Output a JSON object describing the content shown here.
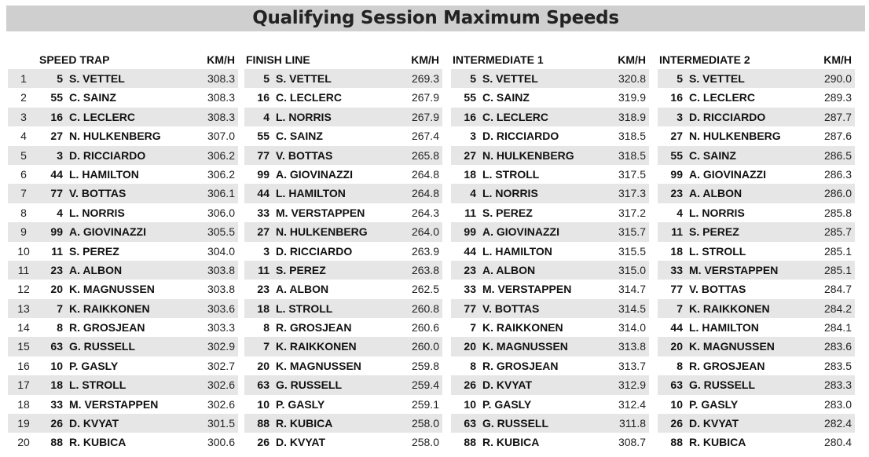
{
  "title": "Qualifying Session Maximum Speeds",
  "positions": [
    "1",
    "2",
    "3",
    "4",
    "5",
    "6",
    "7",
    "8",
    "9",
    "10",
    "11",
    "12",
    "13",
    "14",
    "15",
    "16",
    "17",
    "18",
    "19",
    "20"
  ],
  "sections": [
    {
      "title": "SPEED TRAP",
      "unit": "KM/H",
      "rows": [
        {
          "num": "5",
          "driver": "S. VETTEL",
          "speed": "308.3"
        },
        {
          "num": "55",
          "driver": "C. SAINZ",
          "speed": "308.3"
        },
        {
          "num": "16",
          "driver": "C. LECLERC",
          "speed": "308.3"
        },
        {
          "num": "27",
          "driver": "N. HULKENBERG",
          "speed": "307.0"
        },
        {
          "num": "3",
          "driver": "D. RICCIARDO",
          "speed": "306.2"
        },
        {
          "num": "44",
          "driver": "L. HAMILTON",
          "speed": "306.2"
        },
        {
          "num": "77",
          "driver": "V. BOTTAS",
          "speed": "306.1"
        },
        {
          "num": "4",
          "driver": "L. NORRIS",
          "speed": "306.0"
        },
        {
          "num": "99",
          "driver": "A. GIOVINAZZI",
          "speed": "305.5"
        },
        {
          "num": "11",
          "driver": "S. PEREZ",
          "speed": "304.0"
        },
        {
          "num": "23",
          "driver": "A. ALBON",
          "speed": "303.8"
        },
        {
          "num": "20",
          "driver": "K. MAGNUSSEN",
          "speed": "303.8"
        },
        {
          "num": "7",
          "driver": "K. RAIKKONEN",
          "speed": "303.6"
        },
        {
          "num": "8",
          "driver": "R. GROSJEAN",
          "speed": "303.3"
        },
        {
          "num": "63",
          "driver": "G. RUSSELL",
          "speed": "302.9"
        },
        {
          "num": "10",
          "driver": "P. GASLY",
          "speed": "302.7"
        },
        {
          "num": "18",
          "driver": "L. STROLL",
          "speed": "302.6"
        },
        {
          "num": "33",
          "driver": "M. VERSTAPPEN",
          "speed": "302.6"
        },
        {
          "num": "26",
          "driver": "D. KVYAT",
          "speed": "301.5"
        },
        {
          "num": "88",
          "driver": "R. KUBICA",
          "speed": "300.6"
        }
      ]
    },
    {
      "title": "FINISH LINE",
      "unit": "KM/H",
      "rows": [
        {
          "num": "5",
          "driver": "S. VETTEL",
          "speed": "269.3"
        },
        {
          "num": "16",
          "driver": "C. LECLERC",
          "speed": "267.9"
        },
        {
          "num": "4",
          "driver": "L. NORRIS",
          "speed": "267.9"
        },
        {
          "num": "55",
          "driver": "C. SAINZ",
          "speed": "267.4"
        },
        {
          "num": "77",
          "driver": "V. BOTTAS",
          "speed": "265.8"
        },
        {
          "num": "99",
          "driver": "A. GIOVINAZZI",
          "speed": "264.8"
        },
        {
          "num": "44",
          "driver": "L. HAMILTON",
          "speed": "264.8"
        },
        {
          "num": "33",
          "driver": "M. VERSTAPPEN",
          "speed": "264.3"
        },
        {
          "num": "27",
          "driver": "N. HULKENBERG",
          "speed": "264.0"
        },
        {
          "num": "3",
          "driver": "D. RICCIARDO",
          "speed": "263.9"
        },
        {
          "num": "11",
          "driver": "S. PEREZ",
          "speed": "263.8"
        },
        {
          "num": "23",
          "driver": "A. ALBON",
          "speed": "262.5"
        },
        {
          "num": "18",
          "driver": "L. STROLL",
          "speed": "260.8"
        },
        {
          "num": "8",
          "driver": "R. GROSJEAN",
          "speed": "260.6"
        },
        {
          "num": "7",
          "driver": "K. RAIKKONEN",
          "speed": "260.0"
        },
        {
          "num": "20",
          "driver": "K. MAGNUSSEN",
          "speed": "259.8"
        },
        {
          "num": "63",
          "driver": "G. RUSSELL",
          "speed": "259.4"
        },
        {
          "num": "10",
          "driver": "P. GASLY",
          "speed": "259.1"
        },
        {
          "num": "88",
          "driver": "R. KUBICA",
          "speed": "258.0"
        },
        {
          "num": "26",
          "driver": "D. KVYAT",
          "speed": "258.0"
        }
      ]
    },
    {
      "title": "INTERMEDIATE 1",
      "unit": "KM/H",
      "rows": [
        {
          "num": "5",
          "driver": "S. VETTEL",
          "speed": "320.8"
        },
        {
          "num": "55",
          "driver": "C. SAINZ",
          "speed": "319.9"
        },
        {
          "num": "16",
          "driver": "C. LECLERC",
          "speed": "318.9"
        },
        {
          "num": "3",
          "driver": "D. RICCIARDO",
          "speed": "318.5"
        },
        {
          "num": "27",
          "driver": "N. HULKENBERG",
          "speed": "318.5"
        },
        {
          "num": "18",
          "driver": "L. STROLL",
          "speed": "317.5"
        },
        {
          "num": "4",
          "driver": "L. NORRIS",
          "speed": "317.3"
        },
        {
          "num": "11",
          "driver": "S. PEREZ",
          "speed": "317.2"
        },
        {
          "num": "99",
          "driver": "A. GIOVINAZZI",
          "speed": "315.7"
        },
        {
          "num": "44",
          "driver": "L. HAMILTON",
          "speed": "315.5"
        },
        {
          "num": "23",
          "driver": "A. ALBON",
          "speed": "315.0"
        },
        {
          "num": "33",
          "driver": "M. VERSTAPPEN",
          "speed": "314.7"
        },
        {
          "num": "77",
          "driver": "V. BOTTAS",
          "speed": "314.5"
        },
        {
          "num": "7",
          "driver": "K. RAIKKONEN",
          "speed": "314.0"
        },
        {
          "num": "20",
          "driver": "K. MAGNUSSEN",
          "speed": "313.8"
        },
        {
          "num": "8",
          "driver": "R. GROSJEAN",
          "speed": "313.7"
        },
        {
          "num": "26",
          "driver": "D. KVYAT",
          "speed": "312.9"
        },
        {
          "num": "10",
          "driver": "P. GASLY",
          "speed": "312.4"
        },
        {
          "num": "63",
          "driver": "G. RUSSELL",
          "speed": "311.8"
        },
        {
          "num": "88",
          "driver": "R. KUBICA",
          "speed": "308.7"
        }
      ]
    },
    {
      "title": "INTERMEDIATE 2",
      "unit": "KM/H",
      "rows": [
        {
          "num": "5",
          "driver": "S. VETTEL",
          "speed": "290.0"
        },
        {
          "num": "16",
          "driver": "C. LECLERC",
          "speed": "289.3"
        },
        {
          "num": "3",
          "driver": "D. RICCIARDO",
          "speed": "287.7"
        },
        {
          "num": "27",
          "driver": "N. HULKENBERG",
          "speed": "287.6"
        },
        {
          "num": "55",
          "driver": "C. SAINZ",
          "speed": "286.5"
        },
        {
          "num": "99",
          "driver": "A. GIOVINAZZI",
          "speed": "286.3"
        },
        {
          "num": "23",
          "driver": "A. ALBON",
          "speed": "286.0"
        },
        {
          "num": "4",
          "driver": "L. NORRIS",
          "speed": "285.8"
        },
        {
          "num": "11",
          "driver": "S. PEREZ",
          "speed": "285.7"
        },
        {
          "num": "18",
          "driver": "L. STROLL",
          "speed": "285.1"
        },
        {
          "num": "33",
          "driver": "M. VERSTAPPEN",
          "speed": "285.1"
        },
        {
          "num": "77",
          "driver": "V. BOTTAS",
          "speed": "284.7"
        },
        {
          "num": "7",
          "driver": "K. RAIKKONEN",
          "speed": "284.2"
        },
        {
          "num": "44",
          "driver": "L. HAMILTON",
          "speed": "284.1"
        },
        {
          "num": "20",
          "driver": "K. MAGNUSSEN",
          "speed": "283.6"
        },
        {
          "num": "8",
          "driver": "R. GROSJEAN",
          "speed": "283.5"
        },
        {
          "num": "63",
          "driver": "G. RUSSELL",
          "speed": "283.3"
        },
        {
          "num": "10",
          "driver": "P. GASLY",
          "speed": "283.0"
        },
        {
          "num": "26",
          "driver": "D. KVYAT",
          "speed": "282.4"
        },
        {
          "num": "88",
          "driver": "R. KUBICA",
          "speed": "280.4"
        }
      ]
    }
  ]
}
